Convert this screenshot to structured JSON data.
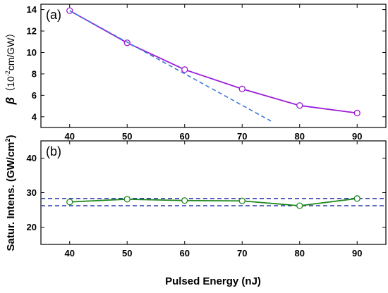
{
  "chart_data": [
    {
      "panel_label": "(a)",
      "type": "line",
      "xlabel": "",
      "ylabel_symbol": "β",
      "ylabel_units": "（10",
      "ylabel_exp": "-2",
      "ylabel_units_tail": "cm/GW）",
      "xlim": [
        35,
        95
      ],
      "ylim": [
        3,
        14.5
      ],
      "xticks": [
        40,
        50,
        60,
        70,
        80,
        90
      ],
      "yticks": [
        4,
        6,
        8,
        10,
        12,
        14
      ],
      "grid": false,
      "legend": "none",
      "series": [
        {
          "style": "line-open-circle",
          "color": "#9b1fd6",
          "x": [
            40,
            50,
            60,
            70,
            80,
            90
          ],
          "y": [
            13.9,
            10.9,
            8.4,
            6.6,
            5.05,
            4.35
          ]
        },
        {
          "style": "dashed",
          "color": "#3d7bd8",
          "x": [
            40,
            75
          ],
          "y": [
            13.9,
            3.6
          ]
        }
      ]
    },
    {
      "panel_label": "(b)",
      "type": "line",
      "xlabel": "Pulsed Energy (nJ)",
      "ylabel": "Satur. Intens. (GW/cm",
      "ylabel_sup": "2",
      "ylabel_tail": ")",
      "xlim": [
        35,
        95
      ],
      "ylim": [
        15,
        45
      ],
      "xticks": [
        40,
        50,
        60,
        70,
        80,
        90
      ],
      "yticks": [
        20,
        30,
        40
      ],
      "grid": false,
      "legend": "none",
      "series": [
        {
          "style": "line-open-circle",
          "color": "#1f8a1f",
          "x": [
            40,
            50,
            60,
            70,
            80,
            90
          ],
          "y": [
            27.3,
            28.1,
            27.7,
            27.6,
            26.2,
            28.3
          ]
        }
      ],
      "hlines": [
        {
          "y": 28.3,
          "color": "#1c2aa8",
          "style": "dashed"
        },
        {
          "y": 26.2,
          "color": "#1c2aa8",
          "style": "dashed"
        }
      ]
    }
  ]
}
